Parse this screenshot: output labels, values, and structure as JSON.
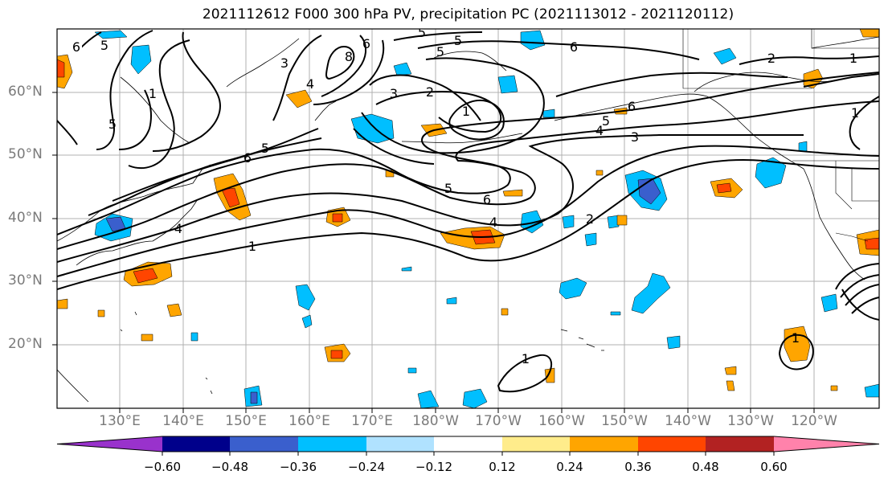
{
  "title": "2021112612 F000 300 hPa PV, precipitation PC (2021113012 - 2021120112)",
  "lat_labels": [
    "60°N",
    "50°N",
    "40°N",
    "30°N",
    "20°N"
  ],
  "lon_labels": [
    "130°E",
    "140°E",
    "150°E",
    "160°E",
    "170°E",
    "180°W",
    "170°W",
    "160°W",
    "150°W",
    "140°W",
    "130°W",
    "120°W"
  ],
  "colorbar": {
    "colors": [
      "#9932cc",
      "#00008b",
      "#3a5fcd",
      "#00bfff",
      "#b0e2ff",
      "#ffffff",
      "#ffec8b",
      "#ffa500",
      "#ff4500",
      "#b22222",
      "#ff82ab"
    ],
    "labels": [
      "−0.60",
      "−0.48",
      "−0.36",
      "−0.24",
      "−0.12",
      "0.12",
      "0.24",
      "0.36",
      "0.48",
      "0.60"
    ]
  },
  "contour_labels": [
    "6",
    "5",
    "3",
    "4",
    "5",
    "6",
    "8",
    "1",
    "5",
    "3",
    "2",
    "1",
    "6",
    "2",
    "1",
    "5",
    "6",
    "5",
    "4",
    "3",
    "6",
    "5",
    "5",
    "6",
    "4",
    "2",
    "1",
    "1",
    "1",
    "1",
    "4",
    "5"
  ]
}
